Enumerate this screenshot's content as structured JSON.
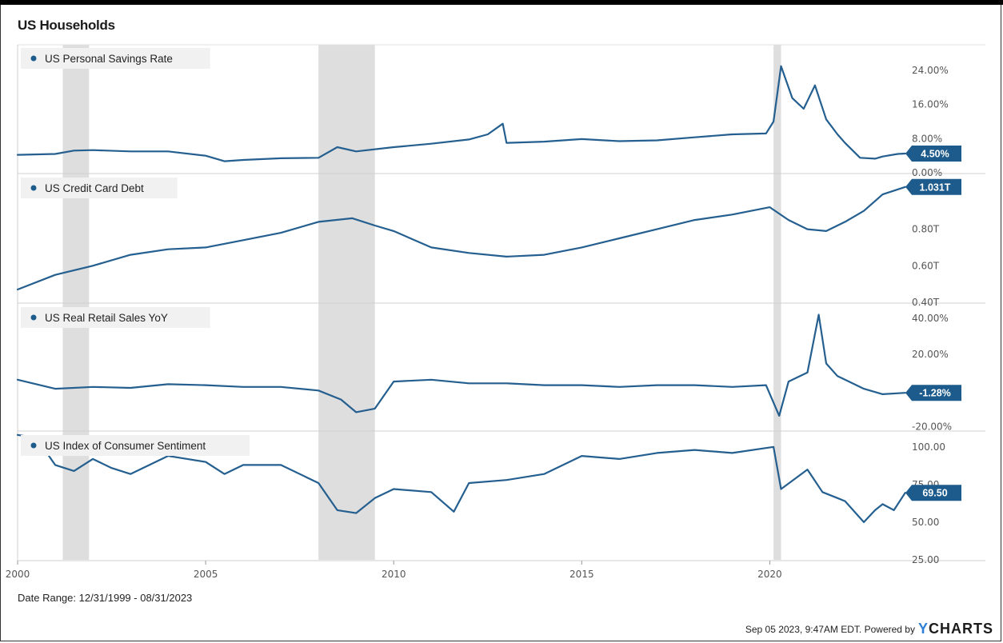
{
  "title": "US Households",
  "date_range": "Date Range: 12/31/1999 - 08/31/2023",
  "footer": {
    "timestamp_text": "Sep 05 2023, 9:47AM EDT. Powered by",
    "brand_y": "Y",
    "brand_rest": "CHARTS"
  },
  "colors": {
    "line": "#245f8f",
    "badge": "#1c5b8c",
    "recession": "#dedede",
    "legend_bg": "#f1f1f1",
    "grid": "#e9e9e9"
  },
  "chart_data": {
    "type": "line",
    "x_tick_labels": [
      "2000",
      "2005",
      "2010",
      "2015",
      "2020"
    ],
    "x_ticks": [
      2000,
      2005,
      2010,
      2015,
      2020
    ],
    "xlim": [
      2000.0,
      2023.67
    ],
    "recessions": [
      [
        2001.2,
        2001.9
      ],
      [
        2008.0,
        2009.5
      ],
      [
        2020.1,
        2020.3
      ]
    ],
    "panels": [
      {
        "series_name": "US Personal Savings Rate",
        "last_value_label": "4.50%",
        "last_value": 4.5,
        "ylim": [
          0,
          30
        ],
        "y_ticks": [
          0,
          8,
          16,
          24
        ],
        "y_tick_labels": [
          "0.00%",
          "8.00%",
          "16.00%",
          "24.00%"
        ],
        "x": [
          2000,
          2001,
          2001.5,
          2002,
          2003,
          2004,
          2005,
          2005.5,
          2006,
          2007,
          2008,
          2008.5,
          2009,
          2010,
          2011,
          2012,
          2012.5,
          2012.9,
          2013,
          2014,
          2015,
          2016,
          2017,
          2018,
          2019,
          2019.9,
          2020.1,
          2020.3,
          2020.6,
          2020.9,
          2021.2,
          2021.5,
          2021.8,
          2022,
          2022.4,
          2022.8,
          2023,
          2023.4,
          2023.6
        ],
        "y": [
          4.2,
          4.4,
          5.2,
          5.3,
          5.0,
          5.0,
          4.0,
          2.7,
          3.0,
          3.4,
          3.5,
          6.0,
          5.0,
          6.0,
          6.8,
          7.8,
          9.0,
          11.5,
          7.0,
          7.3,
          7.9,
          7.4,
          7.6,
          8.3,
          9.0,
          9.2,
          12.0,
          25.0,
          17.5,
          15.0,
          20.5,
          12.5,
          9.0,
          7.0,
          3.5,
          3.3,
          3.8,
          4.4,
          4.5
        ]
      },
      {
        "series_name": "US Credit Card Debt",
        "last_value_label": "1.031T",
        "last_value": 1.031,
        "ylim": [
          0.4,
          1.1
        ],
        "y_ticks": [
          0.4,
          0.6,
          0.8
        ],
        "y_tick_labels": [
          "0.40T",
          "0.60T",
          "0.80T"
        ],
        "x": [
          2000,
          2001,
          2002,
          2003,
          2004,
          2005,
          2006,
          2007,
          2008,
          2008.9,
          2009.5,
          2010,
          2011,
          2012,
          2013,
          2014,
          2015,
          2016,
          2017,
          2018,
          2019,
          2020,
          2020.5,
          2021,
          2021.5,
          2022,
          2022.5,
          2023,
          2023.6
        ],
        "y": [
          0.47,
          0.55,
          0.6,
          0.66,
          0.69,
          0.7,
          0.74,
          0.78,
          0.84,
          0.86,
          0.82,
          0.79,
          0.7,
          0.67,
          0.65,
          0.66,
          0.7,
          0.75,
          0.8,
          0.85,
          0.88,
          0.92,
          0.85,
          0.8,
          0.79,
          0.84,
          0.9,
          0.99,
          1.031
        ]
      },
      {
        "series_name": "US Real Retail Sales YoY",
        "last_value_label": "-1.28%",
        "last_value": -1.28,
        "ylim": [
          -22,
          48
        ],
        "y_ticks": [
          -20,
          0,
          20,
          40
        ],
        "y_tick_labels": [
          "-20.00%",
          "0.00%",
          "20.00%",
          "40.00%"
        ],
        "x": [
          2000,
          2001,
          2002,
          2003,
          2004,
          2005,
          2006,
          2007,
          2008,
          2008.6,
          2009,
          2009.5,
          2010,
          2011,
          2012,
          2013,
          2014,
          2015,
          2016,
          2017,
          2018,
          2019,
          2019.9,
          2020.25,
          2020.5,
          2021,
          2021.3,
          2021.5,
          2021.8,
          2022,
          2022.5,
          2023,
          2023.6
        ],
        "y": [
          6.0,
          1.0,
          2.0,
          1.5,
          3.5,
          3.0,
          2.0,
          2.0,
          0.0,
          -5.0,
          -12.0,
          -10.0,
          5.0,
          6.0,
          4.0,
          4.0,
          3.0,
          3.0,
          2.0,
          3.0,
          3.0,
          2.0,
          3.0,
          -14.0,
          5.0,
          10.0,
          42.0,
          15.0,
          8.0,
          6.0,
          1.0,
          -2.0,
          -1.28
        ]
      },
      {
        "series_name": "US Index of Consumer Sentiment",
        "last_value_label": "69.50",
        "last_value": 69.5,
        "ylim": [
          25,
          110
        ],
        "y_ticks": [
          25,
          50,
          75,
          100
        ],
        "y_tick_labels": [
          "25.00",
          "50.00",
          "75.00",
          "100.00"
        ],
        "x": [
          2000,
          2000.5,
          2001,
          2001.5,
          2002,
          2002.5,
          2003,
          2004,
          2005,
          2005.5,
          2006,
          2007,
          2008,
          2008.5,
          2009,
          2009.5,
          2010,
          2011,
          2011.6,
          2012,
          2013,
          2014,
          2015,
          2016,
          2017,
          2018,
          2019,
          2020.1,
          2020.3,
          2021,
          2021.4,
          2021.8,
          2022,
          2022.5,
          2022.8,
          2023,
          2023.3,
          2023.6
        ],
        "y": [
          108,
          106,
          88,
          84,
          92,
          86,
          82,
          94,
          90,
          82,
          88,
          88,
          76,
          58,
          56,
          66,
          72,
          70,
          57,
          76,
          78,
          82,
          94,
          92,
          96,
          98,
          96,
          100,
          72,
          85,
          70,
          66,
          64,
          50,
          58,
          62,
          58,
          69.5
        ]
      }
    ]
  }
}
